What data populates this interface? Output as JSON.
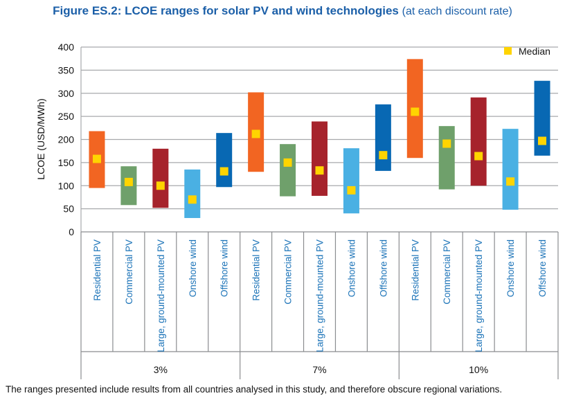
{
  "figure": {
    "title_bold": "Figure ES.2: LCOE ranges for solar PV and wind technologies",
    "title_suffix": "(at each discount rate)",
    "footnote": "The ranges presented include results from all countries analysed in this study, and therefore obscure regional variations."
  },
  "chart_data": {
    "type": "bar",
    "subtype": "floating-range-with-median",
    "ylabel": "LCOE (USD/MWh)",
    "ylim": [
      0,
      400
    ],
    "yticks": [
      0,
      50,
      100,
      150,
      200,
      250,
      300,
      350,
      400
    ],
    "grid": true,
    "legend": {
      "placement": "top-right",
      "median_label": "Median"
    },
    "technologies": [
      "Residential PV",
      "Commercial PV",
      "Large, ground-mounted PV",
      "Onshore wind",
      "Offshore wind"
    ],
    "colors": {
      "Residential PV": "#f26522",
      "Commercial PV": "#6fa06b",
      "Large, ground-mounted PV": "#a6232c",
      "Onshore wind": "#4ab0e3",
      "Offshore wind": "#0868b3",
      "median": "#ffd400"
    },
    "groups": [
      {
        "label": "3%",
        "ranges": [
          {
            "technology": "Residential PV",
            "low": 95,
            "high": 218,
            "median": 158
          },
          {
            "technology": "Commercial PV",
            "low": 58,
            "high": 142,
            "median": 108
          },
          {
            "technology": "Large, ground-mounted PV",
            "low": 52,
            "high": 180,
            "median": 100
          },
          {
            "technology": "Onshore wind",
            "low": 30,
            "high": 135,
            "median": 70
          },
          {
            "technology": "Offshore wind",
            "low": 97,
            "high": 214,
            "median": 131
          }
        ]
      },
      {
        "label": "7%",
        "ranges": [
          {
            "technology": "Residential PV",
            "low": 130,
            "high": 302,
            "median": 212
          },
          {
            "technology": "Commercial PV",
            "low": 77,
            "high": 190,
            "median": 150
          },
          {
            "technology": "Large, ground-mounted PV",
            "low": 78,
            "high": 239,
            "median": 133
          },
          {
            "technology": "Onshore wind",
            "low": 40,
            "high": 181,
            "median": 90
          },
          {
            "technology": "Offshore wind",
            "low": 132,
            "high": 276,
            "median": 166
          }
        ]
      },
      {
        "label": "10%",
        "ranges": [
          {
            "technology": "Residential PV",
            "low": 160,
            "high": 374,
            "median": 260
          },
          {
            "technology": "Commercial PV",
            "low": 92,
            "high": 229,
            "median": 191
          },
          {
            "technology": "Large, ground-mounted PV",
            "low": 100,
            "high": 291,
            "median": 164
          },
          {
            "technology": "Onshore wind",
            "low": 48,
            "high": 223,
            "median": 109
          },
          {
            "technology": "Offshore wind",
            "low": 165,
            "high": 327,
            "median": 197
          }
        ]
      }
    ]
  }
}
